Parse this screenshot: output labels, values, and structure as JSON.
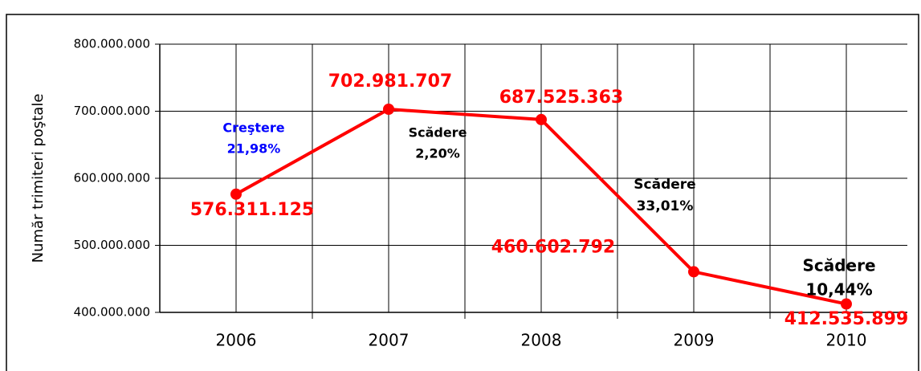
{
  "chart_data": {
    "type": "line",
    "y_label": "Număr trimiteri poştale",
    "categories": [
      "2006",
      "2007",
      "2008",
      "2009",
      "2010"
    ],
    "series": [
      {
        "name": "Trimiteri poştale",
        "color": "#ff0000",
        "values": [
          576311125,
          702981707,
          687525363,
          460602792,
          412535899
        ],
        "value_labels": [
          "576.311.125",
          "702.981.707",
          "687.525.363",
          "460.602.792",
          "412.535.899"
        ]
      }
    ],
    "ylim": [
      400000000,
      800000000
    ],
    "yticks": [
      {
        "value": 400000000,
        "label": "400.000.000"
      },
      {
        "value": 500000000,
        "label": "500.000.000"
      },
      {
        "value": 600000000,
        "label": "600.000.000"
      },
      {
        "value": 700000000,
        "label": "700.000.000"
      },
      {
        "value": 800000000,
        "label": "800.000.000"
      }
    ],
    "grid": true,
    "annotations": [
      {
        "lines": [
          "Creştere",
          "21,98%"
        ],
        "color": "#0000ff"
      },
      {
        "lines": [
          "Scădere",
          "2,20%"
        ],
        "color": "#000000"
      },
      {
        "lines": [
          "Scădere",
          "33,01%"
        ],
        "color": "#000000"
      },
      {
        "lines": [
          "Scădere",
          "10,44%"
        ],
        "color": "#000000"
      }
    ]
  }
}
